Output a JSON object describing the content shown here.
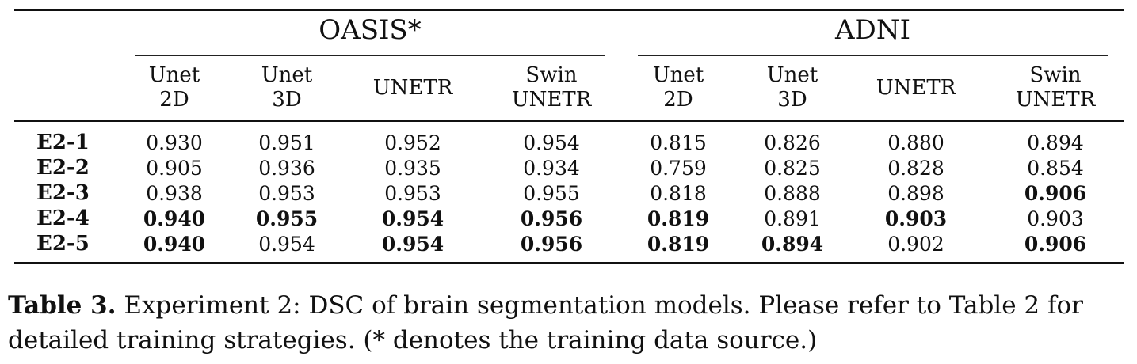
{
  "table": {
    "groups": [
      "OASIS*",
      "ADNI"
    ],
    "columns": [
      {
        "line1": "Unet",
        "line2": "2D"
      },
      {
        "line1": "Unet",
        "line2": "3D"
      },
      {
        "line1": "UNETR",
        "line2": ""
      },
      {
        "line1": "Swin",
        "line2": "UNETR"
      },
      {
        "line1": "Unet",
        "line2": "2D"
      },
      {
        "line1": "Unet",
        "line2": "3D"
      },
      {
        "line1": "UNETR",
        "line2": ""
      },
      {
        "line1": "Swin",
        "line2": "UNETR"
      }
    ],
    "rows": [
      {
        "label": "E2-1",
        "values": [
          "0.930",
          "0.951",
          "0.952",
          "0.954",
          "0.815",
          "0.826",
          "0.880",
          "0.894"
        ],
        "bold": [
          false,
          false,
          false,
          false,
          false,
          false,
          false,
          false
        ]
      },
      {
        "label": "E2-2",
        "values": [
          "0.905",
          "0.936",
          "0.935",
          "0.934",
          "0.759",
          "0.825",
          "0.828",
          "0.854"
        ],
        "bold": [
          false,
          false,
          false,
          false,
          false,
          false,
          false,
          false
        ]
      },
      {
        "label": "E2-3",
        "values": [
          "0.938",
          "0.953",
          "0.953",
          "0.955",
          "0.818",
          "0.888",
          "0.898",
          "0.906"
        ],
        "bold": [
          false,
          false,
          false,
          false,
          false,
          false,
          false,
          true
        ]
      },
      {
        "label": "E2-4",
        "values": [
          "0.940",
          "0.955",
          "0.954",
          "0.956",
          "0.819",
          "0.891",
          "0.903",
          "0.903"
        ],
        "bold": [
          true,
          true,
          true,
          true,
          true,
          false,
          true,
          false
        ]
      },
      {
        "label": "E2-5",
        "values": [
          "0.940",
          "0.954",
          "0.954",
          "0.956",
          "0.819",
          "0.894",
          "0.902",
          "0.906"
        ],
        "bold": [
          true,
          false,
          true,
          true,
          true,
          true,
          false,
          true
        ]
      }
    ]
  },
  "caption": {
    "label": "Table 3.",
    "text": " Experiment 2: DSC of brain segmentation models. Please refer to Table 2 for detailed training strategies. (* denotes the training data source.)"
  }
}
